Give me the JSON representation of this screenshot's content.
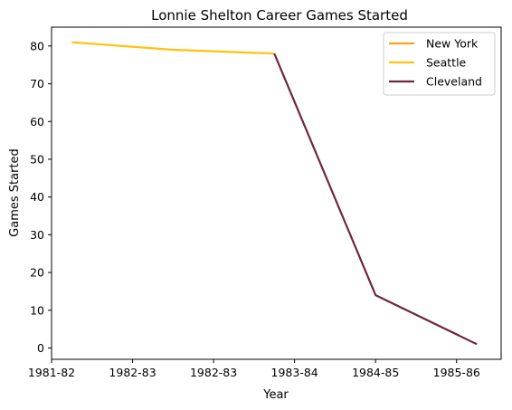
{
  "chart_data": {
    "type": "line",
    "title": "Lonnie Shelton Career Games Started",
    "xlabel": "Year",
    "ylabel": "Games Started",
    "x_tick_labels": [
      "1981-82",
      "1982-83",
      "1982-83",
      "1983-84",
      "1984-85",
      "1985-86"
    ],
    "x_tick_values": [
      1981.0,
      1982.0,
      1983.0,
      1984.0,
      1985.0,
      1986.0
    ],
    "xlim": [
      1981.0,
      1986.55
    ],
    "y_ticks": [
      0,
      10,
      20,
      30,
      40,
      50,
      60,
      70,
      80
    ],
    "ylim": [
      -3,
      85
    ],
    "grid": false,
    "legend_position": "top-right",
    "series": [
      {
        "name": "New York",
        "color": "#f5a21d",
        "points": []
      },
      {
        "name": "Seattle",
        "color": "#ffc20e",
        "points": [
          {
            "x": 1981.25,
            "y": 81
          },
          {
            "x": 1982.5,
            "y": 79
          },
          {
            "x": 1983.75,
            "y": 78
          }
        ]
      },
      {
        "name": "Cleveland",
        "color": "#6f263d",
        "points": [
          {
            "x": 1983.75,
            "y": 78
          },
          {
            "x": 1985.0,
            "y": 14
          },
          {
            "x": 1986.25,
            "y": 1
          }
        ]
      }
    ]
  }
}
